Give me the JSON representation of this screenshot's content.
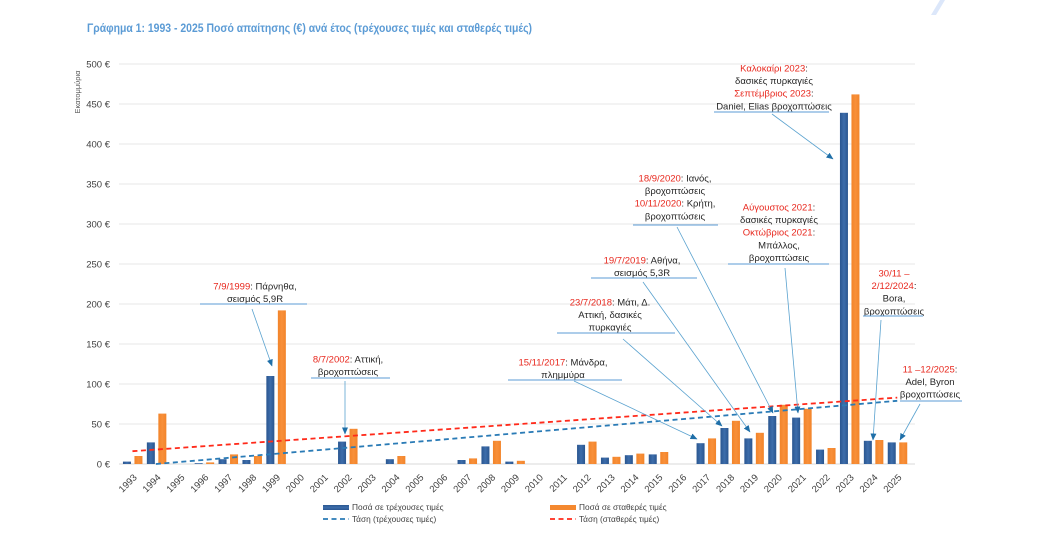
{
  "title": "Γράφημα 1: 1993 - 2025 Ποσό απαίτησης (€) ανά έτος (τρέχουσες τιμές και σταθερές τιμές)",
  "chart_data": {
    "type": "bar",
    "title": "Γράφημα 1: 1993 - 2025 Ποσό απαίτησης (€) ανά έτος (τρέχουσες τιμές και σταθερές τιμές)",
    "xlabel": "",
    "ylabel": "Εκατομμύρια",
    "ylim": [
      0,
      500
    ],
    "yticks": [
      0,
      50,
      100,
      150,
      200,
      250,
      300,
      350,
      400,
      450,
      500
    ],
    "ytick_labels": [
      "0 €",
      "50 €",
      "100 €",
      "150 €",
      "200 €",
      "250 €",
      "300 €",
      "350 €",
      "400 €",
      "450 €",
      "500 €"
    ],
    "grid": true,
    "legend": "bottom",
    "categories": [
      "1993",
      "1994",
      "1995",
      "1996",
      "1997",
      "1998",
      "1999",
      "2000",
      "2001",
      "2002",
      "2003",
      "2004",
      "2005",
      "2006",
      "2007",
      "2008",
      "2009",
      "2010",
      "2011",
      "2012",
      "2013",
      "2014",
      "2015",
      "2016",
      "2017",
      "2018",
      "2019",
      "2020",
      "2021",
      "2022",
      "2023",
      "2024",
      "2025"
    ],
    "series": [
      {
        "name": "Ποσά σε τρέχουσες τιμές",
        "type": "bar",
        "color": "#2F5F98",
        "values": [
          3,
          27,
          0,
          1,
          6,
          5,
          110,
          0,
          0,
          28,
          0,
          6,
          0,
          0,
          5,
          22,
          3,
          0,
          0,
          24,
          8,
          11,
          12,
          0,
          26,
          45,
          32,
          60,
          58,
          18,
          439,
          29,
          27
        ]
      },
      {
        "name": "Ποσά σε σταθερές τιμές",
        "type": "bar",
        "color": "#F4882F",
        "values": [
          10,
          63,
          0,
          2,
          12,
          10,
          192,
          0,
          0,
          44,
          0,
          10,
          0,
          0,
          7,
          29,
          4,
          0,
          0,
          28,
          9,
          13,
          15,
          0,
          32,
          54,
          39,
          74,
          69,
          20,
          462,
          30,
          27
        ]
      },
      {
        "name": "Τάση (τρέχουσες τιμές)",
        "type": "trendline",
        "color": "#2A7BB6",
        "start": {
          "category": "1993",
          "value": -2.5
        },
        "end": {
          "category": "2025",
          "value": 79
        }
      },
      {
        "name": "Τάση (σταθερές τιμές)",
        "type": "trendline",
        "color": "#FF2A1A",
        "start": {
          "category": "1993",
          "value": 16
        },
        "end": {
          "category": "2025",
          "value": 83
        }
      }
    ],
    "annotation_highlight_color": "#E8281E",
    "annotations": [
      {
        "target": "1999",
        "lines": [
          [
            {
              "text": "7/9/1999",
              "highlight": true
            },
            {
              "text": ": Πάρνηθα,"
            }
          ],
          [
            {
              "text": "σεισμός 5,9R"
            }
          ]
        ]
      },
      {
        "target": "2002",
        "lines": [
          [
            {
              "text": "8/7/2002",
              "highlight": true
            },
            {
              "text": ": Αττική,"
            }
          ],
          [
            {
              "text": "βροχοπτώσεις"
            }
          ]
        ]
      },
      {
        "target": "2017",
        "lines": [
          [
            {
              "text": "15/11/2017",
              "highlight": true
            },
            {
              "text": ": Μάνδρα,"
            }
          ],
          [
            {
              "text": "πλημμύρα"
            }
          ]
        ]
      },
      {
        "target": "2018",
        "lines": [
          [
            {
              "text": "23/7/2018",
              "highlight": true
            },
            {
              "text": ": Μάτι, Δ."
            }
          ],
          [
            {
              "text": "Αττική, δασικές"
            }
          ],
          [
            {
              "text": "πυρκαγιές"
            }
          ]
        ]
      },
      {
        "target": "2019",
        "lines": [
          [
            {
              "text": "19/7/2019",
              "highlight": true
            },
            {
              "text": ": Αθήνα,"
            }
          ],
          [
            {
              "text": "σεισμός 5,3R"
            }
          ]
        ]
      },
      {
        "target": "2020",
        "lines": [
          [
            {
              "text": "18/9/2020",
              "highlight": true
            },
            {
              "text": ": Ιανός,"
            }
          ],
          [
            {
              "text": "βροχοπτώσεις"
            }
          ],
          [
            {
              "text": "10/11/2020",
              "highlight": true
            },
            {
              "text": ": Κρήτη,"
            }
          ],
          [
            {
              "text": "βροχοπτώσεις"
            }
          ]
        ]
      },
      {
        "target": "2021",
        "lines": [
          [
            {
              "text": "Αύγουστος 2021",
              "highlight": true
            },
            {
              "text": ":"
            }
          ],
          [
            {
              "text": "δασικές πυρκαγιές"
            }
          ],
          [
            {
              "text": "Οκτώβριος 2021",
              "highlight": true
            },
            {
              "text": ":"
            }
          ],
          [
            {
              "text": "Μπάλλος,"
            }
          ],
          [
            {
              "text": "βροχοπτώσεις"
            }
          ]
        ]
      },
      {
        "target": "2023",
        "lines": [
          [
            {
              "text": "Καλοκαίρι 2023",
              "highlight": true
            },
            {
              "text": ":"
            }
          ],
          [
            {
              "text": "δασικές πυρκαγιές"
            }
          ],
          [
            {
              "text": "Σεπτέμβριος 2023",
              "highlight": true
            },
            {
              "text": ":"
            }
          ],
          [
            {
              "text": "Daniel, Elias βροχοπτώσεις"
            }
          ]
        ]
      },
      {
        "target": "2024",
        "lines": [
          [
            {
              "text": "30/11 –",
              "highlight": true
            }
          ],
          [
            {
              "text": "2/12/2024",
              "highlight": true
            },
            {
              "text": ":"
            }
          ],
          [
            {
              "text": "Bora,"
            }
          ],
          [
            {
              "text": "βροχοπτώσεις"
            }
          ]
        ]
      },
      {
        "target": "2025",
        "lines": [
          [
            {
              "text": "11 –12/2025",
              "highlight": true
            },
            {
              "text": ":"
            }
          ],
          [
            {
              "text": "Adel, Byron"
            }
          ],
          [
            {
              "text": "βροχοπτώσεις"
            }
          ]
        ]
      }
    ]
  }
}
